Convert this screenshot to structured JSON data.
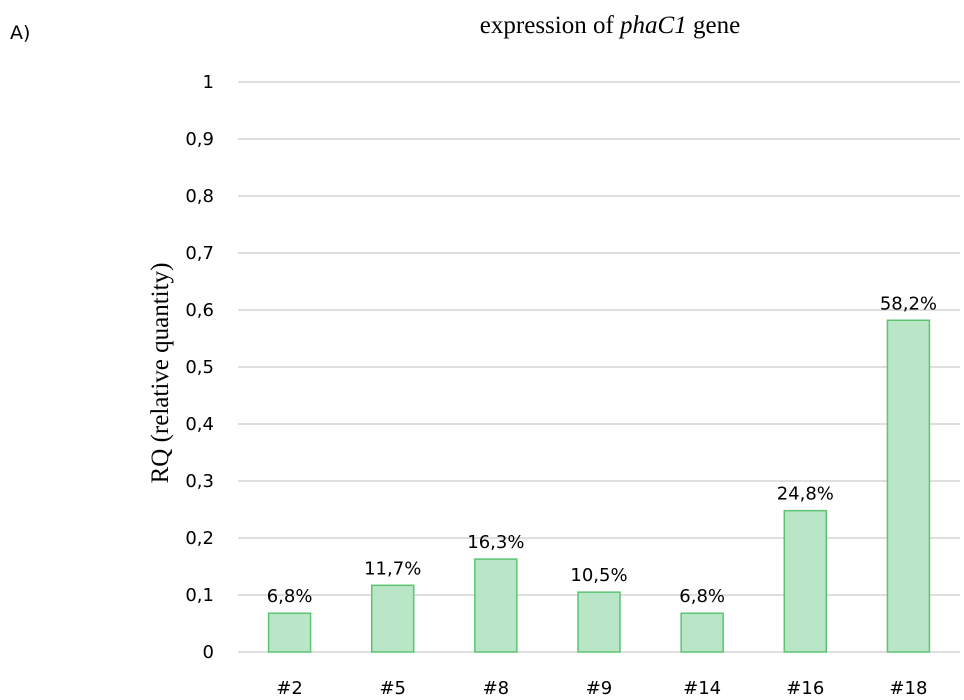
{
  "panel_label": "A)",
  "colors": {
    "bar_fill": "#b9e6c6",
    "bar_stroke": "#5cc472",
    "gridline": "#bfbfbf",
    "text": "#000000"
  },
  "chart_data": {
    "type": "bar",
    "title_prefix": "expression of ",
    "title_gene": "phaC1",
    "title_suffix": " gene",
    "ylabel": "RQ (relative quantity)",
    "xlabel": "",
    "categories": [
      "#2",
      "#5",
      "#8",
      "#9",
      "#14",
      "#16",
      "#18"
    ],
    "values": [
      0.068,
      0.117,
      0.163,
      0.105,
      0.068,
      0.248,
      0.582
    ],
    "data_labels": [
      "6,8%",
      "11,7%",
      "16,3%",
      "10,5%",
      "6,8%",
      "24,8%",
      "58,2%"
    ],
    "ylim": [
      0,
      1
    ],
    "y_ticks": [
      0,
      0.1,
      0.2,
      0.3,
      0.4,
      0.5,
      0.6,
      0.7,
      0.8,
      0.9,
      1
    ],
    "y_tick_labels": [
      "0",
      "0,1",
      "0,2",
      "0,3",
      "0,4",
      "0,5",
      "0,6",
      "0,7",
      "0,8",
      "0,9",
      "1"
    ],
    "grid": true,
    "legend": "none"
  }
}
